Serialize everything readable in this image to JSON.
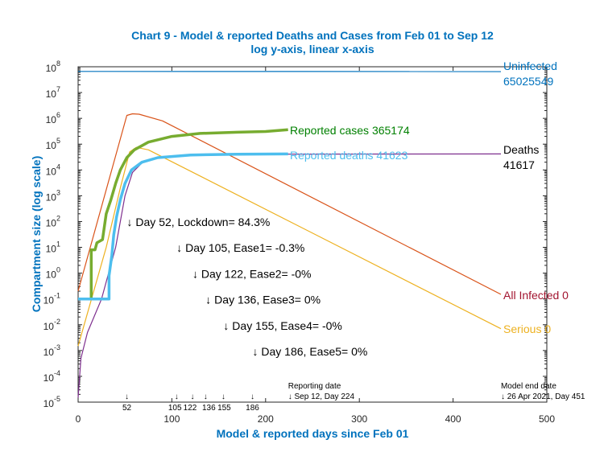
{
  "chart_data": {
    "type": "line",
    "title": "Chart 9 - Model & reported Deaths and Cases from Feb 01 to Sep 12",
    "subtitle": "log y-axis, linear x-axis",
    "xlabel": "Model & reported days since Feb 01",
    "ylabel": "Compartment size (log scale)",
    "xlim": [
      0,
      500
    ],
    "ylim": [
      1e-05,
      100000000.0
    ],
    "yscale": "log",
    "grid": false,
    "x_ticks": [
      "0",
      "100",
      "200",
      "300",
      "400",
      "500"
    ],
    "y_ticks": [
      {
        "base": "10",
        "exp": "8"
      },
      {
        "base": "10",
        "exp": "7"
      },
      {
        "base": "10",
        "exp": "6"
      },
      {
        "base": "10",
        "exp": "5"
      },
      {
        "base": "10",
        "exp": "4"
      },
      {
        "base": "10",
        "exp": "3"
      },
      {
        "base": "10",
        "exp": "2"
      },
      {
        "base": "10",
        "exp": "1"
      },
      {
        "base": "10",
        "exp": "0"
      },
      {
        "base": "10",
        "exp": "-1"
      },
      {
        "base": "10",
        "exp": "-2"
      },
      {
        "base": "10",
        "exp": "-3"
      },
      {
        "base": "10",
        "exp": "-4"
      },
      {
        "base": "10",
        "exp": "-5"
      }
    ],
    "series": [
      {
        "name": "Uninfected",
        "color": "#0072BD",
        "width": 1.2,
        "points": [
          [
            0,
            66000000.0
          ],
          [
            451,
            65000000.0
          ]
        ]
      },
      {
        "name": "All Infected",
        "color": "#D95319",
        "width": 1.2,
        "points": [
          [
            0,
            0.2
          ],
          [
            52,
            1300000.0
          ],
          [
            58,
            1500000.0
          ],
          [
            65,
            1450000.0
          ],
          [
            90,
            800000.0
          ],
          [
            451,
            0.15
          ]
        ]
      },
      {
        "name": "Serious",
        "color": "#EDB120",
        "width": 1.2,
        "points": [
          [
            0,
            0.0015
          ],
          [
            30,
            10
          ],
          [
            45,
            2000
          ],
          [
            55,
            50000.0
          ],
          [
            62,
            75000.0
          ],
          [
            75,
            60000.0
          ],
          [
            451,
            0.007
          ]
        ]
      },
      {
        "name": "Deaths",
        "color": "#7E2F8E",
        "width": 1.2,
        "points": [
          [
            0,
            1.5e-05
          ],
          [
            3,
            0.0005
          ],
          [
            10,
            0.005
          ],
          [
            25,
            0.1
          ],
          [
            40,
            10
          ],
          [
            45,
            100
          ],
          [
            50,
            1000
          ],
          [
            58,
            8000
          ],
          [
            70,
            22000.0
          ],
          [
            90,
            33000.0
          ],
          [
            130,
            39000.0
          ],
          [
            200,
            41000.0
          ],
          [
            451,
            41617
          ]
        ]
      },
      {
        "name": "Reported cases",
        "color": "#77AC30",
        "width": 3.5,
        "points": [
          [
            10,
            0.1
          ],
          [
            14,
            0.1
          ],
          [
            14,
            8
          ],
          [
            18,
            8
          ],
          [
            20,
            15
          ],
          [
            26,
            20
          ],
          [
            30,
            200
          ],
          [
            35,
            700
          ],
          [
            40,
            3000
          ],
          [
            45,
            10000.0
          ],
          [
            52,
            30000.0
          ],
          [
            60,
            60000.0
          ],
          [
            75,
            120000.0
          ],
          [
            100,
            200000.0
          ],
          [
            130,
            260000.0
          ],
          [
            170,
            290000.0
          ],
          [
            200,
            310000.0
          ],
          [
            224,
            365174
          ]
        ]
      },
      {
        "name": "Reported deaths",
        "color": "#4DBEEE",
        "width": 3.5,
        "points": [
          [
            0,
            0.1
          ],
          [
            33,
            0.1
          ],
          [
            33,
            0.8
          ],
          [
            36,
            5
          ],
          [
            38,
            30
          ],
          [
            41,
            150
          ],
          [
            45,
            700
          ],
          [
            50,
            3000
          ],
          [
            57,
            10000.0
          ],
          [
            68,
            20000.0
          ],
          [
            85,
            30000.0
          ],
          [
            120,
            38000.0
          ],
          [
            170,
            40500.0
          ],
          [
            224,
            41623
          ]
        ]
      }
    ],
    "end_labels": [
      {
        "text": "Uninfected",
        "value": "65025549",
        "color": "#0072BD"
      },
      {
        "text": "Reported cases",
        "value": "365174",
        "color": "#008000"
      },
      {
        "text": "Reported deaths",
        "value": "41623",
        "color": "#4DBEEE"
      },
      {
        "text": "Deaths",
        "value": "41617",
        "color": "#000000"
      },
      {
        "text": "All Infected",
        "value": "0",
        "color": "#A2142F"
      },
      {
        "text": "Serious",
        "value": "0",
        "color": "#EDB120"
      }
    ],
    "annotations": [
      {
        "day": 52,
        "text": "↓ Day 52, Lockdown= 84.3%"
      },
      {
        "day": 105,
        "text": "↓ Day 105, Ease1= -0.3%"
      },
      {
        "day": 122,
        "text": "↓ Day 122, Ease2= -0%"
      },
      {
        "day": 136,
        "text": "↓ Day 136, Ease3= 0%"
      },
      {
        "day": 155,
        "text": "↓ Day 155, Ease4= -0%"
      },
      {
        "day": 186,
        "text": "↓ Day 186, Ease5= 0%"
      }
    ],
    "day_markers": [
      {
        "day": 52,
        "arrow": "↓",
        "label": "52"
      },
      {
        "day": 105,
        "arrow": "↓",
        "label": "105"
      },
      {
        "day": 122,
        "arrow": "↓",
        "label": "122"
      },
      {
        "day": 136,
        "arrow": "↓",
        "label": "136"
      },
      {
        "day": 155,
        "arrow": "↓",
        "label": "155"
      },
      {
        "day": 186,
        "arrow": "↓",
        "label": "186"
      }
    ],
    "reporting_date": {
      "day": 224,
      "line1": "Reporting date",
      "line2": "↓ Sep 12, Day 224"
    },
    "model_end": {
      "day": 451,
      "line1": "Model end date",
      "line2": "↓ 26 Apr 2021, Day 451"
    }
  }
}
